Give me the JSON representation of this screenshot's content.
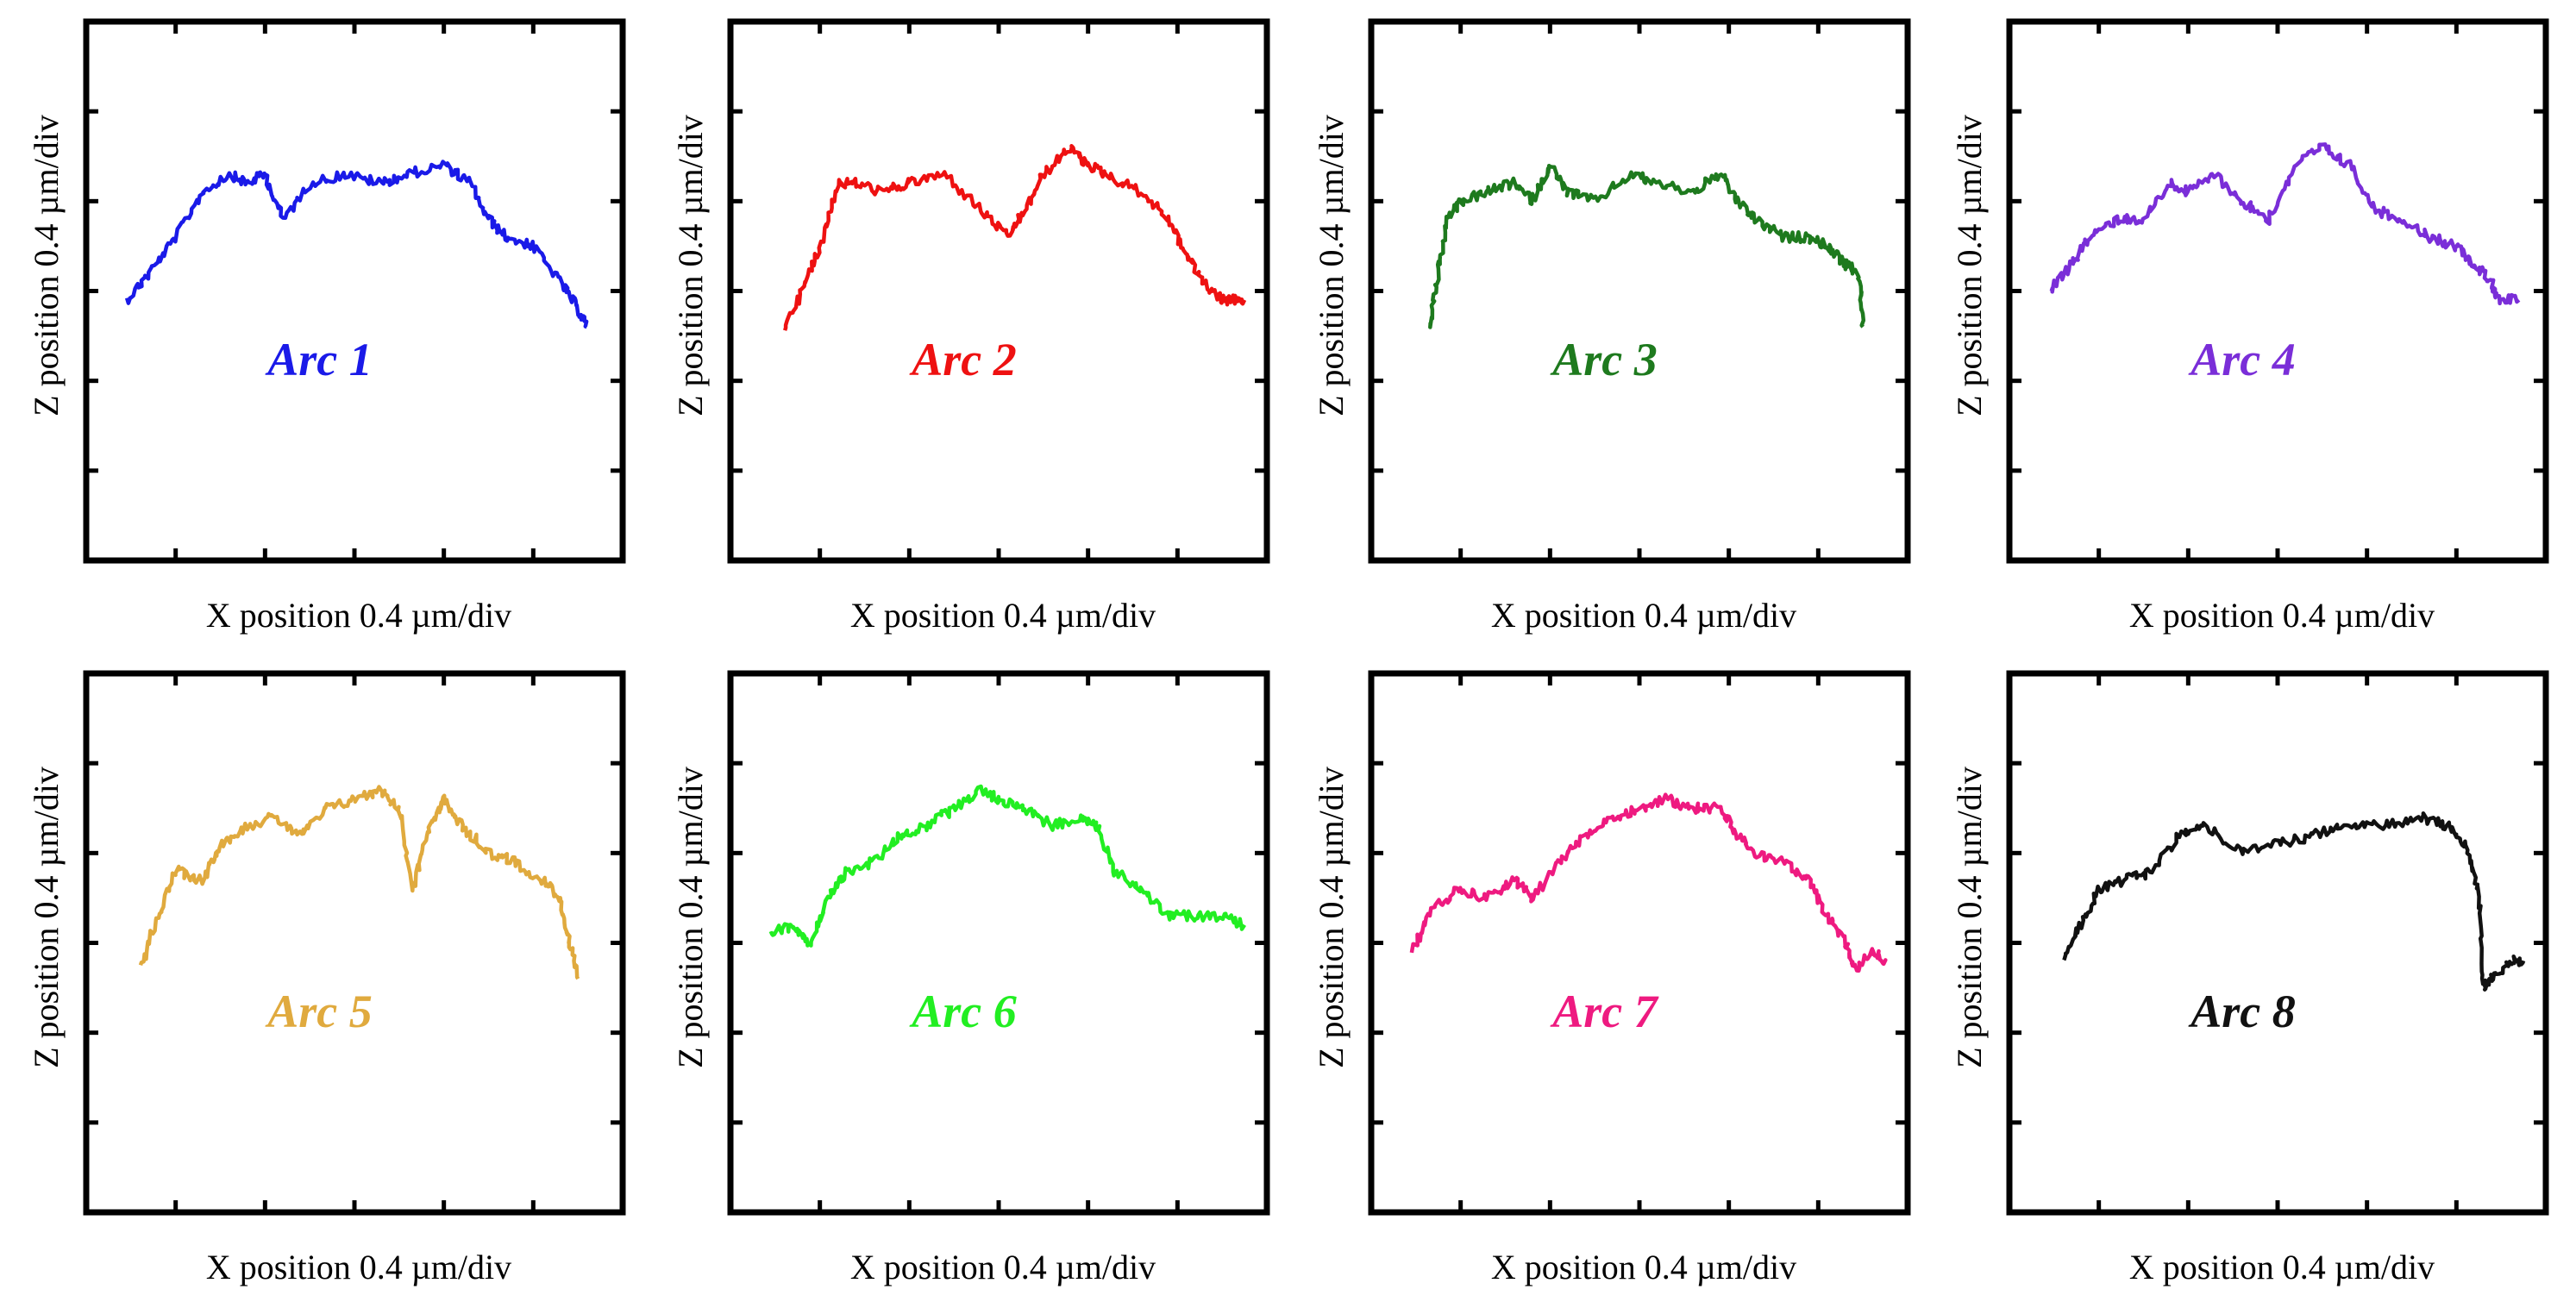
{
  "chart_data": [
    {
      "type": "line",
      "label": "Arc 1",
      "color": "#1a1ae8",
      "xlabel": "X position 0.4 µm/div",
      "ylabel": "Z position 0.4 µm/div",
      "xlim": [
        0,
        6
      ],
      "ylim": [
        0,
        6
      ],
      "series": [
        {
          "name": "Arc 1",
          "x": [
            0.45,
            0.7,
            1.0,
            1.3,
            1.6,
            1.8,
            2.0,
            2.2,
            2.5,
            2.9,
            3.3,
            3.6,
            4.0,
            4.3,
            4.5,
            4.7,
            5.0,
            5.3,
            5.5,
            5.6
          ],
          "y": [
            2.9,
            3.2,
            3.6,
            4.1,
            4.3,
            4.2,
            4.3,
            3.8,
            4.2,
            4.3,
            4.2,
            4.3,
            4.4,
            4.2,
            3.8,
            3.6,
            3.5,
            3.1,
            2.8,
            2.6
          ]
        }
      ]
    },
    {
      "type": "line",
      "label": "Arc 2",
      "color": "#ee1111",
      "xlabel": "X position 0.4 µm/div",
      "ylabel": "Z position 0.4 µm/div",
      "xlim": [
        0,
        6
      ],
      "ylim": [
        0,
        6
      ],
      "series": [
        {
          "name": "Arc 2",
          "x": [
            0.6,
            0.8,
            1.0,
            1.2,
            1.4,
            1.7,
            2.0,
            2.4,
            2.8,
            3.1,
            3.3,
            3.5,
            3.8,
            4.0,
            4.2,
            4.6,
            4.9,
            5.1,
            5.3,
            5.5,
            5.6,
            5.75
          ],
          "y": [
            2.6,
            3.0,
            3.5,
            4.2,
            4.2,
            4.1,
            4.2,
            4.3,
            3.9,
            3.6,
            3.9,
            4.3,
            4.6,
            4.4,
            4.3,
            4.1,
            3.8,
            3.4,
            3.1,
            2.9,
            2.9,
            2.9
          ]
        }
      ]
    },
    {
      "type": "line",
      "label": "Arc 3",
      "color": "#1e7a1e",
      "xlabel": "X position 0.4 µm/div",
      "ylabel": "Z position 0.4 µm/div",
      "xlim": [
        0,
        6
      ],
      "ylim": [
        0,
        6
      ],
      "series": [
        {
          "name": "Arc 3",
          "x": [
            0.65,
            0.75,
            0.85,
            1.0,
            1.3,
            1.6,
            1.8,
            2.0,
            2.2,
            2.5,
            2.9,
            3.2,
            3.6,
            3.9,
            4.1,
            4.3,
            4.6,
            4.9,
            5.1,
            5.3,
            5.45,
            5.5
          ],
          "y": [
            2.6,
            3.2,
            3.8,
            4.0,
            4.1,
            4.2,
            4.0,
            4.4,
            4.1,
            4.0,
            4.3,
            4.2,
            4.1,
            4.3,
            4.0,
            3.8,
            3.6,
            3.6,
            3.5,
            3.3,
            3.2,
            2.6
          ]
        }
      ]
    },
    {
      "type": "line",
      "label": "Arc 4",
      "color": "#7a2ed8",
      "xlabel": "X position 0.4 µm/div",
      "ylabel": "Z position 0.4 µm/div",
      "xlim": [
        0,
        6
      ],
      "ylim": [
        0,
        6
      ],
      "series": [
        {
          "name": "Arc 4",
          "x": [
            0.45,
            0.7,
            0.9,
            1.2,
            1.5,
            1.8,
            2.0,
            2.3,
            2.6,
            2.9,
            3.2,
            3.5,
            3.8,
            4.1,
            4.4,
            4.7,
            5.0,
            5.2,
            5.4,
            5.45,
            5.7
          ],
          "y": [
            3.0,
            3.3,
            3.6,
            3.8,
            3.8,
            4.2,
            4.1,
            4.3,
            4.0,
            3.8,
            4.4,
            4.6,
            4.4,
            3.9,
            3.8,
            3.6,
            3.5,
            3.3,
            3.1,
            2.9,
            2.9
          ]
        }
      ]
    },
    {
      "type": "line",
      "label": "Arc 5",
      "color": "#e0aa3e",
      "xlabel": "X position 0.4 µm/div",
      "ylabel": "Z position 0.4 µm/div",
      "xlim": [
        0,
        6
      ],
      "ylim": [
        0,
        6
      ],
      "series": [
        {
          "name": "Arc 5",
          "x": [
            0.6,
            0.8,
            1.0,
            1.3,
            1.5,
            1.8,
            2.1,
            2.4,
            2.7,
            3.0,
            3.3,
            3.5,
            3.65,
            3.8,
            4.0,
            4.2,
            4.5,
            4.8,
            5.1,
            5.3,
            5.4,
            5.5
          ],
          "y": [
            2.7,
            3.3,
            3.8,
            3.7,
            4.1,
            4.3,
            4.4,
            4.2,
            4.5,
            4.6,
            4.7,
            4.5,
            3.6,
            4.2,
            4.6,
            4.3,
            4.0,
            3.9,
            3.7,
            3.5,
            3.0,
            2.6
          ]
        }
      ]
    },
    {
      "type": "line",
      "label": "Arc 6",
      "color": "#22ee22",
      "xlabel": "X position 0.4 µm/div",
      "ylabel": "Z position 0.4 µm/div",
      "xlim": [
        0,
        6
      ],
      "ylim": [
        0,
        6
      ],
      "series": [
        {
          "name": "Arc 6",
          "x": [
            0.45,
            0.7,
            0.9,
            1.1,
            1.3,
            1.6,
            1.9,
            2.2,
            2.5,
            2.8,
            3.0,
            3.3,
            3.6,
            3.9,
            4.1,
            4.3,
            4.6,
            4.9,
            5.2,
            5.5,
            5.75
          ],
          "y": [
            3.1,
            3.2,
            3.0,
            3.5,
            3.8,
            3.9,
            4.2,
            4.3,
            4.5,
            4.7,
            4.6,
            4.5,
            4.3,
            4.4,
            4.3,
            3.8,
            3.6,
            3.3,
            3.3,
            3.3,
            3.2
          ]
        }
      ]
    },
    {
      "type": "line",
      "label": "Arc 7",
      "color": "#ee1a80",
      "xlabel": "X position 0.4 µm/div",
      "ylabel": "Z position 0.4 µm/div",
      "xlim": [
        0,
        6
      ],
      "ylim": [
        0,
        6
      ],
      "series": [
        {
          "name": "Arc 7",
          "x": [
            0.45,
            0.7,
            1.0,
            1.3,
            1.6,
            1.8,
            2.1,
            2.4,
            2.7,
            3.0,
            3.3,
            3.6,
            3.9,
            4.1,
            4.3,
            4.6,
            4.9,
            5.1,
            5.3,
            5.4,
            5.6,
            5.75
          ],
          "y": [
            2.9,
            3.4,
            3.6,
            3.5,
            3.7,
            3.5,
            3.9,
            4.2,
            4.4,
            4.5,
            4.6,
            4.5,
            4.5,
            4.2,
            4.0,
            3.9,
            3.7,
            3.3,
            3.0,
            2.7,
            2.9,
            2.8
          ]
        }
      ]
    },
    {
      "type": "line",
      "label": "Arc 8",
      "color": "#111111",
      "xlabel": "X position 0.4 µm/div",
      "ylabel": "Z position 0.4 µm/div",
      "xlim": [
        0,
        6
      ],
      "ylim": [
        0,
        6
      ],
      "series": [
        {
          "name": "Arc 8",
          "x": [
            0.6,
            0.8,
            1.0,
            1.3,
            1.6,
            1.9,
            2.2,
            2.6,
            3.0,
            3.4,
            3.8,
            4.2,
            4.6,
            4.9,
            5.1,
            5.25,
            5.3,
            5.4,
            5.6,
            5.75
          ],
          "y": [
            2.8,
            3.2,
            3.6,
            3.7,
            3.8,
            4.2,
            4.3,
            4.0,
            4.1,
            4.2,
            4.3,
            4.3,
            4.4,
            4.3,
            4.1,
            3.6,
            2.5,
            2.6,
            2.8,
            2.8
          ]
        }
      ]
    }
  ]
}
